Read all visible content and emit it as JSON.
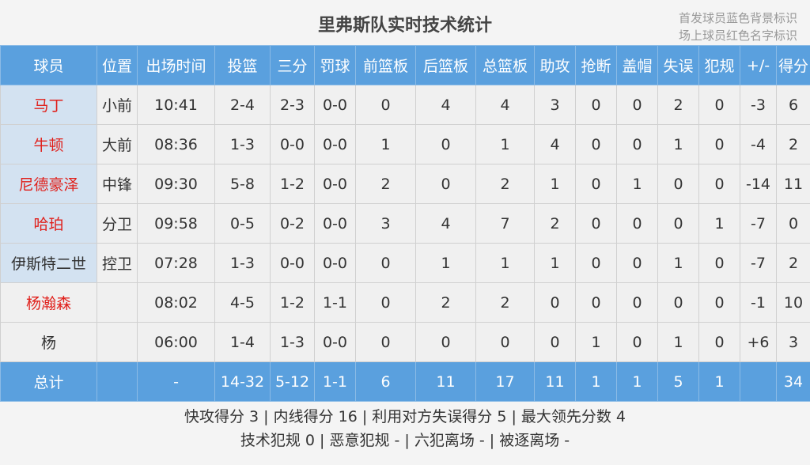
{
  "header": {
    "title": "里弗斯队实时技术统计",
    "notes": [
      "首发球员蓝色背景标识",
      "场上球员红色名字标识"
    ]
  },
  "table": {
    "columns": [
      "球员",
      "位置",
      "出场时间",
      "投篮",
      "三分",
      "罚球",
      "前篮板",
      "后篮板",
      "总篮板",
      "助攻",
      "抢断",
      "盖帽",
      "失误",
      "犯规",
      "+/-",
      "得分"
    ],
    "rows": [
      {
        "starter": true,
        "on_court": true,
        "cells": [
          "马丁",
          "小前",
          "10:41",
          "2-4",
          "2-3",
          "0-0",
          "0",
          "4",
          "4",
          "3",
          "0",
          "0",
          "2",
          "0",
          "-3",
          "6"
        ]
      },
      {
        "starter": true,
        "on_court": true,
        "cells": [
          "牛顿",
          "大前",
          "08:36",
          "1-3",
          "0-0",
          "0-0",
          "1",
          "0",
          "1",
          "4",
          "0",
          "0",
          "1",
          "0",
          "-4",
          "2"
        ]
      },
      {
        "starter": true,
        "on_court": true,
        "cells": [
          "尼德豪泽",
          "中锋",
          "09:30",
          "5-8",
          "1-2",
          "0-0",
          "2",
          "0",
          "2",
          "1",
          "0",
          "1",
          "0",
          "0",
          "-14",
          "11"
        ]
      },
      {
        "starter": true,
        "on_court": true,
        "cells": [
          "哈珀",
          "分卫",
          "09:58",
          "0-5",
          "0-2",
          "0-0",
          "3",
          "4",
          "7",
          "2",
          "0",
          "0",
          "0",
          "1",
          "-7",
          "0"
        ]
      },
      {
        "starter": true,
        "on_court": false,
        "cells": [
          "伊斯特二世",
          "控卫",
          "07:28",
          "1-3",
          "0-0",
          "0-0",
          "0",
          "1",
          "1",
          "1",
          "0",
          "0",
          "1",
          "0",
          "-7",
          "2"
        ]
      },
      {
        "starter": false,
        "on_court": true,
        "cells": [
          "杨瀚森",
          null,
          "08:02",
          "4-5",
          "1-2",
          "1-1",
          "0",
          "2",
          "2",
          "0",
          "0",
          "0",
          "0",
          "0",
          "-1",
          "10"
        ]
      },
      {
        "starter": false,
        "on_court": false,
        "cells": [
          "杨",
          null,
          "06:00",
          "1-4",
          "1-3",
          "0-0",
          "0",
          "0",
          "0",
          "0",
          "1",
          "0",
          "1",
          "0",
          "+6",
          "3"
        ]
      }
    ],
    "total": [
      "总计",
      null,
      "-",
      "14-32",
      "5-12",
      "1-1",
      "6",
      "11",
      "17",
      "11",
      "1",
      "1",
      "5",
      "1",
      null,
      "34"
    ]
  },
  "footer": {
    "lines": [
      "快攻得分 3 | 内线得分 16 | 利用对方失误得分 5 | 最大领先分数 4",
      "技术犯规 0 | 恶意犯规 - | 六犯离场 - | 被逐离场 -"
    ]
  }
}
